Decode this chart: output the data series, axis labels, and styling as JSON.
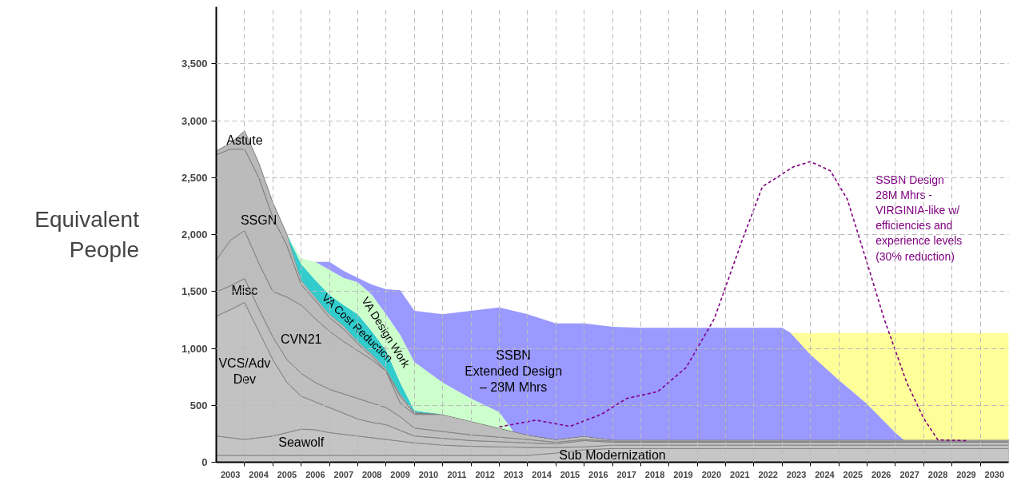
{
  "chart_data": {
    "type": "area",
    "stacked": true,
    "ylabel": "Equivalent\nPeople",
    "x": [
      2003,
      2003.5,
      2004,
      2004.5,
      2005,
      2005.5,
      2006,
      2006.5,
      2007,
      2007.5,
      2008,
      2008.5,
      2009,
      2009.5,
      2010,
      2011,
      2012,
      2013,
      2013.5,
      2014,
      2015,
      2016,
      2017,
      2018,
      2019,
      2020,
      2021,
      2022,
      2023,
      2023.3,
      2024,
      2025,
      2026,
      2027,
      2027.3,
      2028,
      2029,
      2030,
      2031
    ],
    "series": [
      {
        "name": "Sub Modernization",
        "color": "#c6c6c6",
        "values": [
          60,
          60,
          60,
          60,
          60,
          60,
          60,
          60,
          60,
          60,
          60,
          60,
          60,
          60,
          60,
          60,
          60,
          60,
          60,
          60,
          80,
          110,
          120,
          120,
          120,
          120,
          120,
          120,
          120,
          120,
          120,
          120,
          120,
          120,
          120,
          120,
          120,
          120,
          120
        ]
      },
      {
        "name": "Seawolf",
        "color": "#c4c4c4",
        "values": [
          170,
          155,
          140,
          155,
          170,
          200,
          230,
          225,
          200,
          185,
          170,
          155,
          140,
          125,
          110,
          90,
          80,
          75,
          73,
          70,
          50,
          25,
          30,
          30,
          30,
          30,
          30,
          30,
          30,
          30,
          30,
          30,
          30,
          30,
          30,
          30,
          30,
          30,
          30
        ]
      },
      {
        "name": "VCS/Adv\nDev",
        "color": "#c2c2c2",
        "values": [
          1053,
          1125,
          1203,
          935,
          670,
          440,
          290,
          245,
          220,
          185,
          150,
          135,
          130,
          95,
          60,
          60,
          50,
          45,
          42,
          40,
          30,
          55,
          25,
          25,
          25,
          25,
          25,
          25,
          25,
          25,
          25,
          25,
          25,
          25,
          25,
          25,
          25,
          25,
          25
        ]
      },
      {
        "name": "Misc",
        "color": "#bfbfbf",
        "values": [
          212,
          210,
          210,
          200,
          200,
          200,
          200,
          170,
          160,
          170,
          180,
          170,
          150,
          120,
          70,
          60,
          50,
          40,
          35,
          30,
          15,
          10,
          10,
          10,
          10,
          10,
          10,
          10,
          10,
          10,
          10,
          10,
          10,
          10,
          10,
          10,
          10,
          10,
          10
        ]
      },
      {
        "name": "CVN21",
        "color": "#bdbdbd",
        "values": [
          280,
          400,
          421,
          400,
          400,
          550,
          600,
          560,
          510,
          460,
          420,
          380,
          320,
          120,
          120,
          150,
          120,
          80,
          60,
          40,
          25,
          30,
          11,
          11,
          11,
          11,
          11,
          11,
          11,
          11,
          11,
          11,
          11,
          11,
          11,
          11,
          11,
          11,
          11
        ]
      },
      {
        "name": "SSGN",
        "color": "#bbbbbb",
        "values": [
          925,
          800,
          716,
          750,
          650,
          450,
          180,
          160,
          120,
          110,
          60,
          30,
          0,
          60,
          10,
          0,
          0,
          0,
          0,
          0,
          0,
          0,
          0,
          0,
          0,
          0,
          0,
          0,
          0,
          0,
          0,
          0,
          0,
          0,
          0,
          0,
          0,
          0,
          0
        ]
      },
      {
        "name": "Astute",
        "color": "#b9b9b9",
        "values": [
          35,
          50,
          160,
          130,
          130,
          100,
          40,
          30,
          30,
          30,
          20,
          20,
          20,
          20,
          10,
          0,
          0,
          0,
          0,
          0,
          0,
          0,
          0,
          0,
          0,
          0,
          0,
          0,
          0,
          0,
          0,
          0,
          0,
          0,
          0,
          0,
          0,
          0,
          0
        ]
      },
      {
        "name": "VA Cost Reduction",
        "color": "#33cccc",
        "values": [
          null,
          null,
          null,
          null,
          null,
          0,
          140,
          150,
          170,
          180,
          240,
          200,
          160,
          100,
          15,
          0,
          null,
          null,
          null,
          null,
          null,
          null,
          null,
          null,
          null,
          null,
          null,
          null,
          null,
          null,
          null,
          null,
          null,
          null,
          null,
          null,
          null,
          null,
          null
        ]
      },
      {
        "name": "VA Design Work",
        "color": "#ccffcc",
        "values": [
          null,
          null,
          null,
          null,
          null,
          0,
          50,
          160,
          220,
          240,
          280,
          320,
          320,
          420,
          425,
          280,
          200,
          140,
          0,
          null,
          null,
          null,
          null,
          null,
          null,
          null,
          null,
          null,
          null,
          null,
          null,
          null,
          null,
          null,
          null,
          null,
          null,
          null,
          null
        ]
      },
      {
        "name": "SSBN\nExtended Design\n– 28M Mhrs",
        "color": "#9999ff",
        "values": [
          null,
          null,
          null,
          null,
          null,
          null,
          null,
          0,
          70,
          60,
          40,
          90,
          220,
          390,
          450,
          600,
          770,
          920,
          1060,
          1060,
          1020,
          990,
          994,
          984,
          984,
          984,
          984,
          984,
          984,
          939,
          750,
          526,
          316,
          64,
          0,
          null,
          null,
          null,
          null
        ]
      },
      {
        "color": "#ffff99",
        "values": [
          null,
          null,
          null,
          null,
          null,
          null,
          null,
          null,
          null,
          null,
          null,
          null,
          null,
          null,
          null,
          null,
          null,
          null,
          null,
          null,
          null,
          null,
          null,
          null,
          null,
          null,
          null,
          null,
          null,
          0,
          189,
          413,
          623,
          875,
          939,
          939,
          939,
          939,
          939
        ]
      },
      {
        "type": "line",
        "line_style": "dashed",
        "name": "SSBN Design\n28M Mhrs -\nVIRGINIA-like w/\nefficiencies and\nexperience levels\n(30% reduction)",
        "color": "#800080",
        "x": [
          2013.0,
          2014.3,
          2015.5,
          2016.6,
          2017.5,
          2018.6,
          2019.6,
          2020.6,
          2021.6,
          2022.3,
          2023.4,
          2024.0,
          2024.7,
          2025.3,
          2026.0,
          2026.6,
          2027.4,
          2028.0,
          2028.5,
          2029.5
        ],
        "values": [
          310,
          370,
          315,
          420,
          560,
          620,
          830,
          1260,
          1960,
          2420,
          2595,
          2640,
          2560,
          2310,
          1750,
          1260,
          700,
          385,
          196,
          190
        ]
      }
    ],
    "xlim": [
      2003,
      2031
    ],
    "xticks": [
      {
        "value": 2003.5,
        "label": "2003"
      },
      {
        "value": 2004.5,
        "label": "2004"
      },
      {
        "value": 2005.5,
        "label": "2005"
      },
      {
        "value": 2006.5,
        "label": "2006"
      },
      {
        "value": 2007.5,
        "label": "2007"
      },
      {
        "value": 2008.5,
        "label": "2008"
      },
      {
        "value": 2009.5,
        "label": "2009"
      },
      {
        "value": 2010.5,
        "label": "2010"
      },
      {
        "value": 2011.5,
        "label": "2011"
      },
      {
        "value": 2012.5,
        "label": "2012"
      },
      {
        "value": 2013.5,
        "label": "2013"
      },
      {
        "value": 2014.5,
        "label": "2014"
      },
      {
        "value": 2015.5,
        "label": "2015"
      },
      {
        "value": 2016.5,
        "label": "2016"
      },
      {
        "value": 2017.5,
        "label": "2017"
      },
      {
        "value": 2018.5,
        "label": "2018"
      },
      {
        "value": 2019.5,
        "label": "2019"
      },
      {
        "value": 2020.5,
        "label": "2020"
      },
      {
        "value": 2021.5,
        "label": "2021"
      },
      {
        "value": 2022.5,
        "label": "2022"
      },
      {
        "value": 2023.5,
        "label": "2023"
      },
      {
        "value": 2024.5,
        "label": "2024"
      },
      {
        "value": 2025.5,
        "label": "2025"
      },
      {
        "value": 2026.5,
        "label": "2026"
      },
      {
        "value": 2027.5,
        "label": "2027"
      },
      {
        "value": 2028.5,
        "label": "2028"
      },
      {
        "value": 2029.5,
        "label": "2029"
      },
      {
        "value": 2030.5,
        "label": "2030"
      },
      {
        "value": 2004,
        "label": null
      },
      {
        "value": 2005,
        "label": null
      },
      {
        "value": 2006,
        "label": null
      },
      {
        "value": 2007,
        "label": null
      },
      {
        "value": 2008,
        "label": null
      },
      {
        "value": 2009,
        "label": null
      },
      {
        "value": 2010,
        "label": null
      },
      {
        "value": 2011,
        "label": null
      },
      {
        "value": 2012,
        "label": null
      },
      {
        "value": 2013,
        "label": null
      },
      {
        "value": 2014,
        "label": null
      },
      {
        "value": 2015,
        "label": null
      },
      {
        "value": 2016,
        "label": null
      },
      {
        "value": 2017,
        "label": null
      },
      {
        "value": 2018,
        "label": null
      },
      {
        "value": 2019,
        "label": null
      },
      {
        "value": 2020,
        "label": null
      },
      {
        "value": 2021,
        "label": null
      },
      {
        "value": 2022,
        "label": null
      },
      {
        "value": 2023,
        "label": null
      },
      {
        "value": 2024,
        "label": null
      },
      {
        "value": 2025,
        "label": null
      },
      {
        "value": 2026,
        "label": null
      },
      {
        "value": 2027,
        "label": null
      },
      {
        "value": 2028,
        "label": null
      },
      {
        "value": 2029,
        "label": null
      },
      {
        "value": 2030,
        "label": null
      }
    ],
    "ylim": [
      0,
      4000
    ],
    "yticks": [
      0,
      {
        "value": 500,
        "label": "500"
      },
      {
        "value": 1000,
        "label": "1,000"
      },
      {
        "value": 1500,
        "label": "1,500"
      },
      {
        "value": 2000,
        "label": "2,000"
      },
      {
        "value": 2500,
        "label": "2,500"
      },
      {
        "value": 3000,
        "label": "3,000"
      },
      {
        "value": 3500,
        "label": "3,500"
      }
    ],
    "grid": true,
    "legend": false
  }
}
